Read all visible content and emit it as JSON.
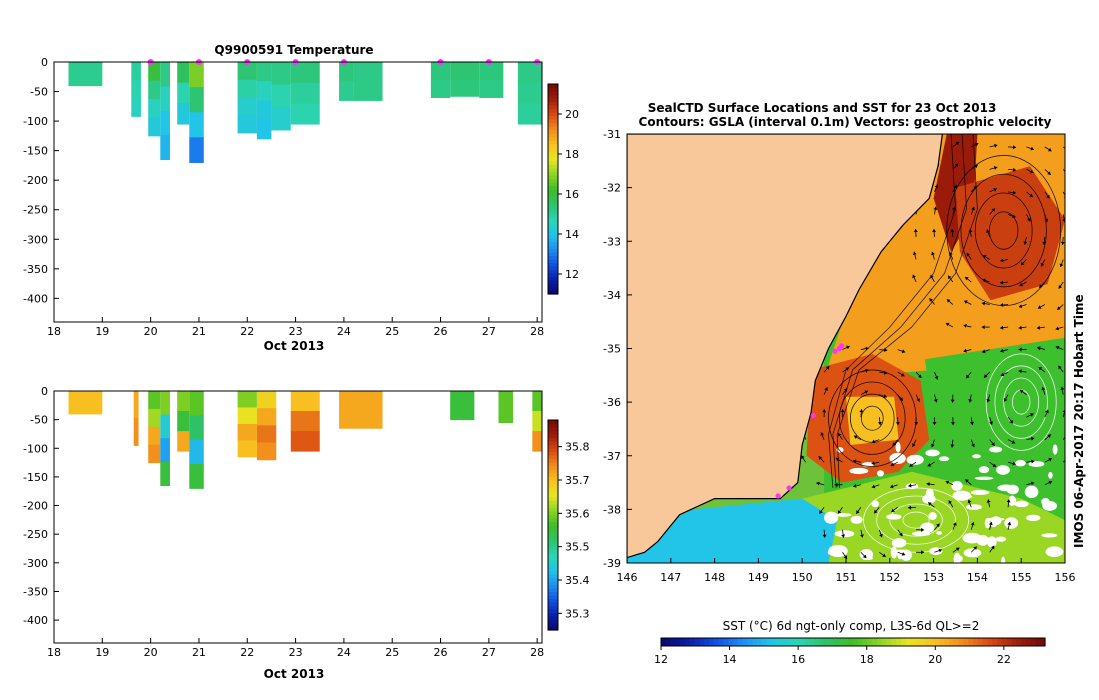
{
  "colors": {
    "land": "#f8c89b",
    "rainbow": [
      "#08086b",
      "#0a1ea8",
      "#1052e0",
      "#1f8ff2",
      "#22c4e8",
      "#2bd4b4",
      "#2ec268",
      "#3fbe26",
      "#8fd424",
      "#e6e620",
      "#f7c020",
      "#f28a1c",
      "#d84a12",
      "#a01d0a",
      "#6e0a04"
    ]
  },
  "chart_data": [
    {
      "type": "heatmap",
      "title": "Q9900591  Temperature",
      "xlabel": "Oct 2013",
      "xlim": [
        18,
        28.1
      ],
      "ylim": [
        -440,
        0
      ],
      "x_ticks": [
        18,
        19,
        20,
        21,
        22,
        23,
        24,
        25,
        26,
        27,
        28
      ],
      "y_ticks": [
        0,
        -50,
        -100,
        -150,
        -200,
        -250,
        -300,
        -350,
        -400
      ],
      "profile_markers_x": [
        20,
        21,
        22,
        23,
        24,
        26,
        27,
        28
      ],
      "colorbar": {
        "min": 11,
        "max": 21.5,
        "ticks": [
          12,
          14,
          16,
          18,
          20
        ]
      },
      "profiles": [
        {
          "x0": 18.3,
          "x1": 19.0,
          "depth": -40,
          "values": [
            15.1,
            15.1
          ]
        },
        {
          "x0": 19.6,
          "x1": 19.8,
          "depth": -92,
          "values": [
            15.0,
            14.8,
            14.6
          ]
        },
        {
          "x0": 19.95,
          "x1": 20.2,
          "depth": -125,
          "values": [
            16.0,
            15.2,
            14.6,
            14.2
          ]
        },
        {
          "x0": 20.2,
          "x1": 20.4,
          "depth": -165,
          "values": [
            15.2,
            14.6,
            14.0,
            13.8
          ]
        },
        {
          "x0": 20.55,
          "x1": 20.8,
          "depth": -105,
          "values": [
            15.6,
            14.8,
            14.2
          ]
        },
        {
          "x0": 20.8,
          "x1": 21.1,
          "depth": -170,
          "values": [
            16.8,
            15.4,
            14.0,
            13.0
          ]
        },
        {
          "x0": 21.8,
          "x1": 22.2,
          "depth": -120,
          "values": [
            15.4,
            14.9,
            14.4,
            14.2
          ]
        },
        {
          "x0": 22.2,
          "x1": 22.5,
          "depth": -130,
          "values": [
            15.2,
            14.6,
            14.2,
            14.0
          ]
        },
        {
          "x0": 22.5,
          "x1": 22.9,
          "depth": -115,
          "values": [
            15.2,
            14.8,
            14.4
          ]
        },
        {
          "x0": 22.9,
          "x1": 23.5,
          "depth": -105,
          "values": [
            15.3,
            15.0,
            14.8
          ]
        },
        {
          "x0": 23.9,
          "x1": 24.2,
          "depth": -65,
          "values": [
            15.3,
            15.1
          ]
        },
        {
          "x0": 24.2,
          "x1": 24.8,
          "depth": -65,
          "values": [
            15.2,
            15.2
          ]
        },
        {
          "x0": 25.8,
          "x1": 26.2,
          "depth": -60,
          "values": [
            15.3,
            15.2
          ]
        },
        {
          "x0": 26.2,
          "x1": 26.8,
          "depth": -58,
          "values": [
            15.4,
            15.3
          ]
        },
        {
          "x0": 26.8,
          "x1": 27.3,
          "depth": -60,
          "values": [
            15.3,
            15.2
          ]
        },
        {
          "x0": 27.6,
          "x1": 28.1,
          "depth": -105,
          "values": [
            15.2,
            15.1,
            15.0
          ]
        }
      ]
    },
    {
      "type": "heatmap",
      "title": "",
      "xlabel": "Oct 2013",
      "xlim": [
        18,
        28.1
      ],
      "ylim": [
        -440,
        0
      ],
      "x_ticks": [
        18,
        19,
        20,
        21,
        22,
        23,
        24,
        25,
        26,
        27,
        28
      ],
      "y_ticks": [
        0,
        -50,
        -100,
        -150,
        -200,
        -250,
        -300,
        -350,
        -400
      ],
      "colorbar": {
        "min": 35.25,
        "max": 35.88,
        "ticks": [
          35.3,
          35.4,
          35.5,
          35.6,
          35.7,
          35.8
        ]
      },
      "profiles": [
        {
          "x0": 18.3,
          "x1": 19.0,
          "depth": -40,
          "values": [
            35.7,
            35.7
          ]
        },
        {
          "x0": 19.65,
          "x1": 19.75,
          "depth": -95,
          "values": [
            35.72,
            35.74
          ]
        },
        {
          "x0": 19.95,
          "x1": 20.2,
          "depth": -125,
          "values": [
            35.58,
            35.62,
            35.72,
            35.74
          ]
        },
        {
          "x0": 20.2,
          "x1": 20.4,
          "depth": -165,
          "values": [
            35.6,
            35.45,
            35.4,
            35.55
          ]
        },
        {
          "x0": 20.55,
          "x1": 20.8,
          "depth": -105,
          "values": [
            35.6,
            35.55,
            35.72
          ]
        },
        {
          "x0": 20.8,
          "x1": 21.1,
          "depth": -170,
          "values": [
            35.58,
            35.52,
            35.42,
            35.55
          ]
        },
        {
          "x0": 21.8,
          "x1": 22.2,
          "depth": -115,
          "values": [
            35.6,
            35.66,
            35.72,
            35.7
          ]
        },
        {
          "x0": 22.2,
          "x1": 22.6,
          "depth": -120,
          "values": [
            35.68,
            35.72,
            35.76,
            35.74
          ]
        },
        {
          "x0": 22.9,
          "x1": 23.5,
          "depth": -105,
          "values": [
            35.7,
            35.76,
            35.78
          ]
        },
        {
          "x0": 23.9,
          "x1": 24.8,
          "depth": -65,
          "values": [
            35.72,
            35.72
          ]
        },
        {
          "x0": 26.2,
          "x1": 26.7,
          "depth": -50,
          "values": [
            35.55,
            35.55
          ]
        },
        {
          "x0": 27.2,
          "x1": 27.5,
          "depth": -55,
          "values": [
            35.58,
            35.58
          ]
        },
        {
          "x0": 27.9,
          "x1": 28.1,
          "depth": -105,
          "values": [
            35.58,
            35.64,
            35.74
          ]
        }
      ]
    },
    {
      "type": "heatmap",
      "title": "SealCTD Surface Locations and SST for 23 Oct 2013",
      "subtitle": "Contours: GSLA (interval 0.1m) Vectors: geostrophic velocity",
      "xlim": [
        146,
        156
      ],
      "ylim": [
        -39,
        -31
      ],
      "x_ticks": [
        146,
        147,
        148,
        149,
        150,
        151,
        152,
        153,
        154,
        155,
        156
      ],
      "y_ticks": [
        -31,
        -32,
        -33,
        -34,
        -35,
        -36,
        -37,
        -38,
        -39
      ],
      "colorbar": {
        "label": "SST (°C) 6d ngt-only comp, L3S-6d QL>=2",
        "min": 12,
        "max": 23.2,
        "ticks": [
          12,
          14,
          16,
          18,
          20,
          22
        ]
      },
      "coast": [
        [
          153.2,
          -31.0
        ],
        [
          153.1,
          -31.6
        ],
        [
          152.9,
          -32.2
        ],
        [
          152.3,
          -32.7
        ],
        [
          151.8,
          -33.2
        ],
        [
          151.3,
          -33.9
        ],
        [
          151.0,
          -34.4
        ],
        [
          150.6,
          -35.0
        ],
        [
          150.3,
          -35.6
        ],
        [
          150.2,
          -36.2
        ],
        [
          150.0,
          -36.8
        ],
        [
          149.9,
          -37.5
        ],
        [
          149.5,
          -37.8
        ],
        [
          148.7,
          -37.8
        ],
        [
          148.0,
          -37.8
        ],
        [
          147.2,
          -38.1
        ],
        [
          146.7,
          -38.6
        ],
        [
          146.4,
          -38.8
        ],
        [
          146.0,
          -38.9
        ]
      ],
      "sst_regions": [
        {
          "name": "offshore-east",
          "sst": 17.5
        },
        {
          "name": "north-warm",
          "sst": 20.5
        },
        {
          "name": "eac-core",
          "sst": 22.5
        },
        {
          "name": "warm-eddy",
          "sst": 21.5
        },
        {
          "name": "east-eddy",
          "sst": 21.8
        },
        {
          "name": "central-green",
          "sst": 17.5
        },
        {
          "name": "south-yellow",
          "sst": 18.5
        },
        {
          "name": "bass-strait",
          "sst": 15.2
        },
        {
          "name": "eddy-core",
          "sst": 20.0
        }
      ],
      "eddies": [
        {
          "lon": 151.6,
          "lat": -36.3,
          "r_lon": 1.0,
          "r_lat": 0.9,
          "dir": -1
        },
        {
          "lon": 154.6,
          "lat": -32.8,
          "r_lon": 1.3,
          "r_lat": 1.4,
          "dir": -1
        },
        {
          "lon": 152.6,
          "lat": -38.2,
          "r_lon": 1.2,
          "r_lat": 0.6,
          "dir": 1
        },
        {
          "lon": 155.0,
          "lat": -36.0,
          "r_lon": 0.8,
          "r_lat": 0.9,
          "dir": 1
        }
      ],
      "seal_locations": [
        [
          150.75,
          -35.05
        ],
        [
          150.85,
          -35.0
        ],
        [
          150.9,
          -34.95
        ],
        [
          150.25,
          -36.25
        ],
        [
          149.7,
          -37.6
        ],
        [
          149.45,
          -37.75
        ]
      ]
    }
  ],
  "stamp": "IMOS 06-Apr-2017 20:17 Hobart Time"
}
